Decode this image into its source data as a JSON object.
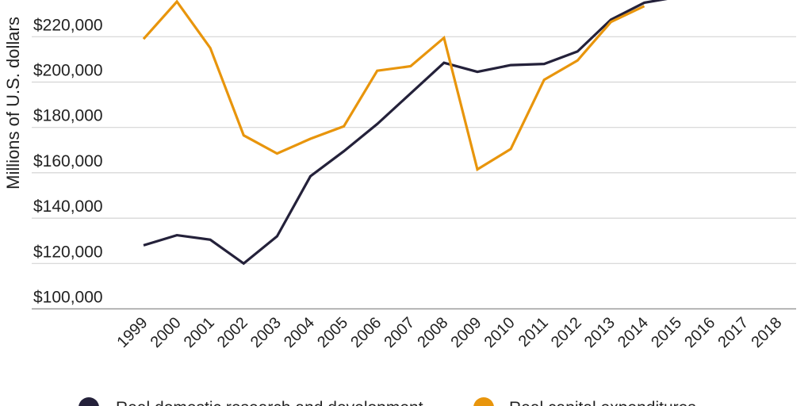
{
  "chart_data": {
    "type": "line",
    "ylabel": "Millions of U.S. dollars",
    "ylim": [
      100000,
      233000
    ],
    "yticks": [
      100000,
      120000,
      140000,
      160000,
      180000,
      200000,
      220000
    ],
    "ytick_labels": [
      "$100,000",
      "$120,000",
      "$140,000",
      "$160,000",
      "$180,000",
      "$200,000",
      "$220,000"
    ],
    "categories": [
      "1999",
      "2000",
      "2001",
      "2002",
      "2003",
      "2004",
      "2005",
      "2006",
      "2007",
      "2008",
      "2009",
      "2010",
      "2011",
      "2012",
      "2013",
      "2014",
      "2015",
      "2016",
      "2017",
      "2018"
    ],
    "grid": true,
    "legend_position": "bottom",
    "series": [
      {
        "name": "Real domestic research and development",
        "color": "#24213a",
        "values": [
          128000,
          132500,
          130500,
          120000,
          132000,
          158500,
          169500,
          181500,
          195000,
          208500,
          204500,
          207500,
          208000,
          213500,
          227500,
          235000,
          237500,
          null,
          null,
          null
        ]
      },
      {
        "name": "Real capital expenditures",
        "color": "#e8950c",
        "values": [
          219000,
          235500,
          215000,
          176500,
          168500,
          175000,
          180500,
          205000,
          207000,
          219500,
          161500,
          170500,
          201000,
          209500,
          226500,
          233500,
          null,
          null,
          null,
          null
        ]
      }
    ]
  }
}
